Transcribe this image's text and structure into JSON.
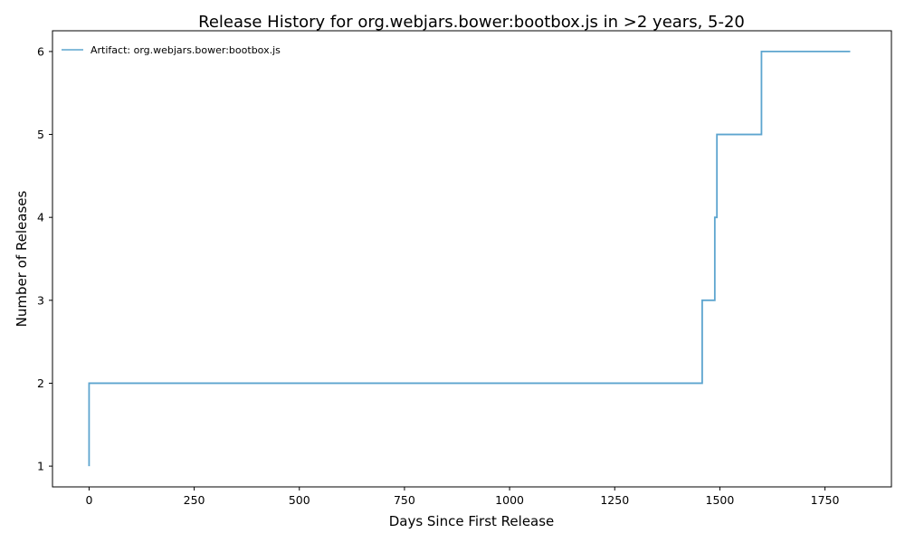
{
  "chart_data": {
    "type": "line",
    "step": true,
    "title": "Release History for org.webjars.bower:bootbox.js in >2 years, 5-20",
    "xlabel": "Days Since First Release",
    "ylabel": "Number of Releases",
    "xlim": [
      -87,
      1908
    ],
    "ylim": [
      0.75,
      6.25
    ],
    "xticks": [
      0,
      250,
      500,
      750,
      1000,
      1250,
      1500,
      1750
    ],
    "xtick_labels": [
      "0",
      "250",
      "500",
      "750",
      "1000",
      "1250",
      "1500",
      "1750"
    ],
    "yticks": [
      1,
      2,
      3,
      4,
      5,
      6
    ],
    "ytick_labels": [
      "1",
      "2",
      "3",
      "4",
      "5",
      "6"
    ],
    "grid": false,
    "legend_position": "top-left",
    "series": [
      {
        "name": "Artifact: org.webjars.bower:bootbox.js",
        "color": "#5da5cf",
        "x": [
          0,
          0,
          1458,
          1488,
          1493,
          1599,
          1810
        ],
        "y": [
          1,
          2,
          3,
          4,
          5,
          6,
          6
        ]
      }
    ]
  }
}
